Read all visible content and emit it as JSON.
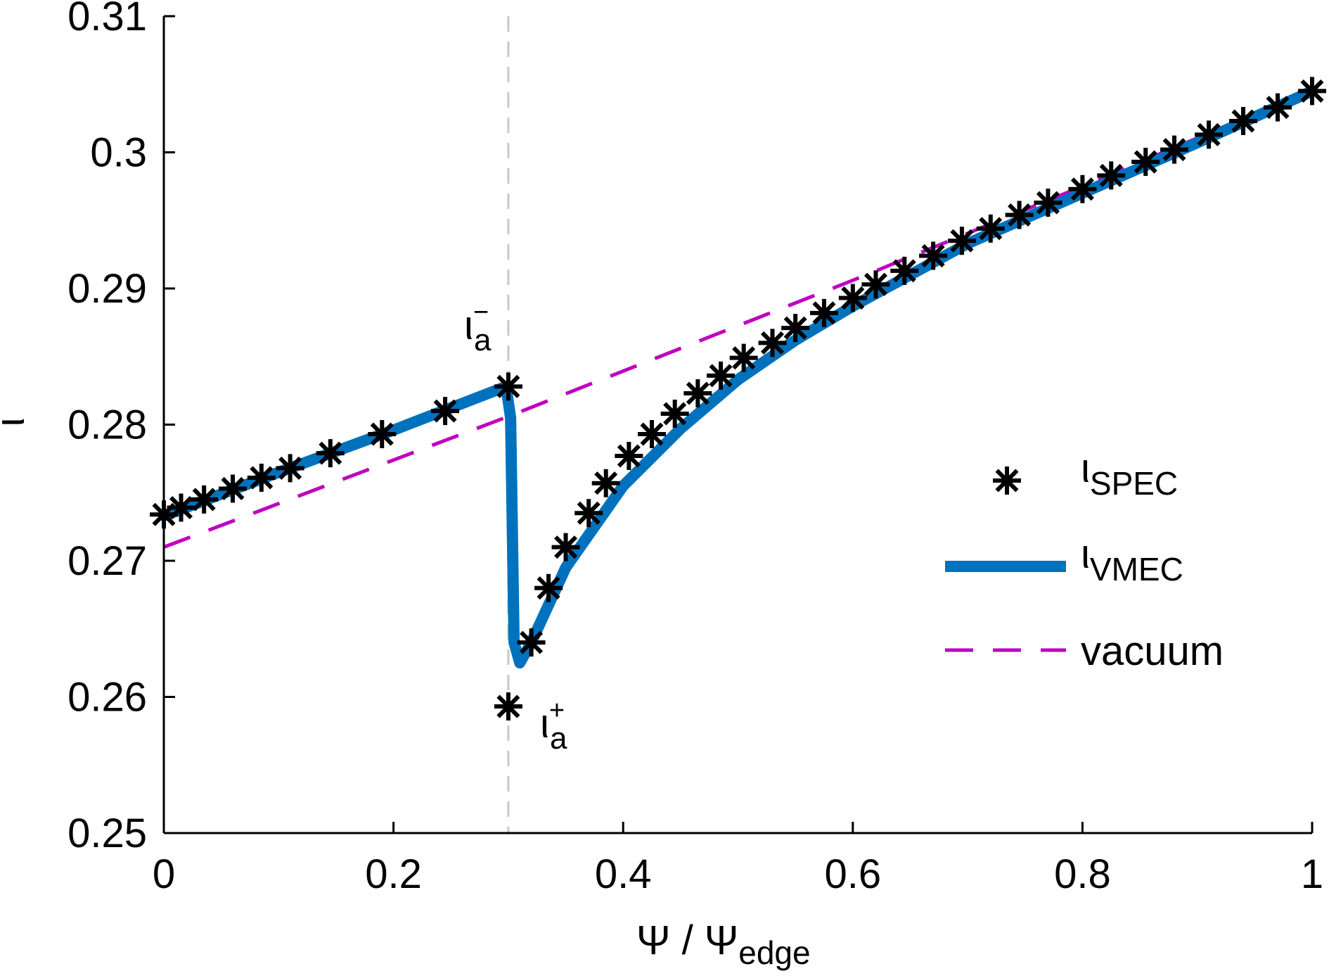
{
  "chart_data": {
    "type": "line",
    "title": "",
    "xlabel": "Ψ / Ψ",
    "xlabel_sub": "edge",
    "ylabel": "ι",
    "xlim": [
      0,
      1
    ],
    "ylim": [
      0.25,
      0.31
    ],
    "xticks": [
      "0",
      "0.2",
      "0.4",
      "0.6",
      "0.8",
      "1"
    ],
    "xtick_values": [
      0,
      0.2,
      0.4,
      0.6,
      0.8,
      1
    ],
    "yticks": [
      "0.25",
      "0.26",
      "0.27",
      "0.28",
      "0.29",
      "0.3",
      "0.31"
    ],
    "ytick_values": [
      0.25,
      0.26,
      0.27,
      0.28,
      0.29,
      0.3,
      0.31
    ],
    "grid": false,
    "legend_placement": "right",
    "vertical_reference_line": {
      "x": 0.3,
      "color": "#c8c8c8",
      "style": "dashed"
    },
    "series": [
      {
        "name": "ι",
        "name_sub": "SPEC",
        "style": "markers",
        "marker": "asterisk",
        "color": "#000000",
        "x": [
          0,
          0.015,
          0.035,
          0.06,
          0.085,
          0.11,
          0.145,
          0.19,
          0.245,
          0.3,
          0.3,
          0.32,
          0.335,
          0.35,
          0.37,
          0.385,
          0.405,
          0.425,
          0.445,
          0.465,
          0.485,
          0.505,
          0.53,
          0.55,
          0.575,
          0.6,
          0.62,
          0.645,
          0.67,
          0.695,
          0.72,
          0.745,
          0.77,
          0.8,
          0.825,
          0.855,
          0.88,
          0.91,
          0.94,
          0.97,
          1.0
        ],
        "y": [
          0.2734,
          0.2739,
          0.2745,
          0.2753,
          0.2761,
          0.2768,
          0.2779,
          0.2793,
          0.281,
          0.2828,
          0.2593,
          0.264,
          0.268,
          0.271,
          0.2735,
          0.2757,
          0.2777,
          0.2793,
          0.2808,
          0.2823,
          0.2836,
          0.2849,
          0.286,
          0.2871,
          0.2882,
          0.2893,
          0.2903,
          0.2913,
          0.2924,
          0.2935,
          0.2944,
          0.2954,
          0.2963,
          0.2973,
          0.2983,
          0.2993,
          0.3002,
          0.3013,
          0.3023,
          0.3033,
          0.3045
        ]
      },
      {
        "name": "ι",
        "name_sub": "VMEC",
        "style": "solid",
        "color": "#0072bd",
        "x": [
          0,
          0.1,
          0.2,
          0.298,
          0.302,
          0.305,
          0.31,
          0.32,
          0.35,
          0.4,
          0.45,
          0.5,
          0.55,
          0.6,
          0.7,
          0.8,
          0.9,
          1.0
        ],
        "y": [
          0.2733,
          0.2765,
          0.2796,
          0.2828,
          0.2805,
          0.264,
          0.2625,
          0.264,
          0.2695,
          0.2755,
          0.2797,
          0.2833,
          0.2862,
          0.2887,
          0.2933,
          0.297,
          0.3007,
          0.3045
        ]
      },
      {
        "name": "vacuum",
        "style": "dashed",
        "color": "#bf00bf",
        "x": [
          0,
          0.3,
          0.6,
          0.8,
          1.0
        ],
        "y": [
          0.271,
          0.2806,
          0.2906,
          0.2975,
          0.3046
        ]
      }
    ],
    "annotations": [
      {
        "text": "ι",
        "sub": "a",
        "sup": "−",
        "x": 0.3,
        "y": 0.2828
      },
      {
        "text": "ι",
        "sub": "a",
        "sup": "+",
        "x": 0.3,
        "y": 0.2593
      }
    ]
  }
}
